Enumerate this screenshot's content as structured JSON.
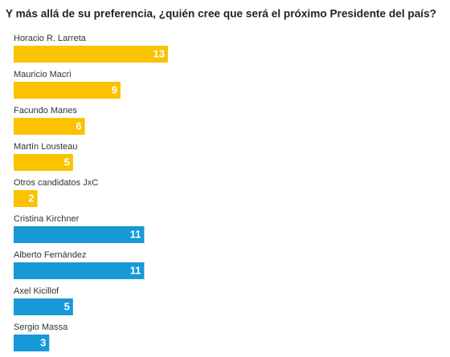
{
  "chart_data": {
    "type": "bar",
    "orientation": "horizontal",
    "title": "Y más allá de su preferencia, ¿quién cree que será el próximo Presidente del país?",
    "categories": [
      "Horacio R. Larreta",
      "Mauricio Macri",
      "Facundo Manes",
      "Martín Lousteau",
      "Otros candidatos JxC",
      "Cristina Kirchner",
      "Alberto Fernández",
      "Axel Kicillof",
      "Sergio Massa"
    ],
    "values": [
      13,
      9,
      6,
      5,
      2,
      11,
      11,
      5,
      3
    ],
    "colors": [
      "#fbc200",
      "#fbc200",
      "#fbc200",
      "#fbc200",
      "#fbc200",
      "#1799d8",
      "#1799d8",
      "#1799d8",
      "#1799d8"
    ]
  }
}
